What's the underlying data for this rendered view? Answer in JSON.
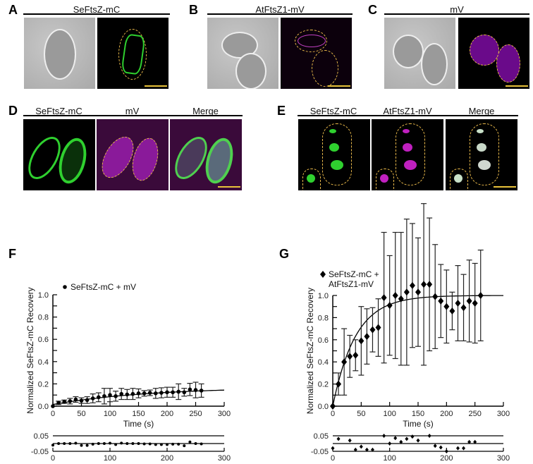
{
  "panels": {
    "A": {
      "label": "A",
      "title": "SeFtsZ-mC"
    },
    "B": {
      "label": "B",
      "title": "AtFtsZ1-mV"
    },
    "C": {
      "label": "C",
      "title": "mV"
    },
    "D": {
      "label": "D",
      "columns": [
        "SeFtsZ-mC",
        "mV",
        "Merge"
      ]
    },
    "E": {
      "label": "E",
      "columns": [
        "SeFtsZ-mC",
        "AtFtsZ1-mV",
        "Merge"
      ]
    },
    "F": {
      "label": "F"
    },
    "G": {
      "label": "G"
    }
  },
  "colors": {
    "green": "#2fd02f",
    "magenta": "#b020b0",
    "outline": "#e8b84a",
    "scalebar": "#e8c23a"
  },
  "chart_data": [
    {
      "panel": "F",
      "type": "scatter",
      "title": "",
      "legend": "SeFtsZ-mC + mV",
      "xlabel": "Time (s)",
      "ylabel": "Normalized SeFtsZ-mC Recovery",
      "xlim": [
        0,
        300
      ],
      "ylim": [
        0,
        1.0
      ],
      "xticks": [
        0,
        50,
        100,
        150,
        200,
        250,
        300
      ],
      "yticks": [
        "0.0",
        "0.2",
        "0.4",
        "0.6",
        "0.8",
        "1.0"
      ],
      "x": [
        0,
        10,
        20,
        30,
        40,
        50,
        60,
        70,
        80,
        90,
        100,
        110,
        120,
        130,
        140,
        150,
        160,
        170,
        180,
        190,
        200,
        210,
        220,
        230,
        240,
        250,
        260
      ],
      "y": [
        0.0,
        0.03,
        0.04,
        0.045,
        0.06,
        0.05,
        0.055,
        0.07,
        0.08,
        0.09,
        0.1,
        0.09,
        0.11,
        0.105,
        0.11,
        0.115,
        0.115,
        0.12,
        0.115,
        0.12,
        0.125,
        0.125,
        0.13,
        0.125,
        0.15,
        0.145,
        0.14
      ],
      "err": [
        0.0,
        0.015,
        0.015,
        0.025,
        0.025,
        0.025,
        0.03,
        0.04,
        0.04,
        0.07,
        0.06,
        0.045,
        0.05,
        0.045,
        0.05,
        0.04,
        0.025,
        0.025,
        0.045,
        0.045,
        0.045,
        0.045,
        0.07,
        0.035,
        0.055,
        0.07,
        0.06
      ],
      "fit": "exponential recovery to ~0.15",
      "residuals": {
        "ylim": [
          -0.05,
          0.05
        ],
        "yticks": [
          "0.05",
          "-0.05"
        ],
        "xticks": [
          0,
          100,
          200,
          300
        ],
        "x": [
          0,
          10,
          20,
          30,
          40,
          50,
          60,
          70,
          80,
          90,
          100,
          110,
          120,
          130,
          140,
          150,
          160,
          170,
          180,
          190,
          200,
          210,
          220,
          230,
          240,
          250,
          260
        ],
        "y": [
          -0.01,
          0.0,
          0.0,
          0.0,
          0.002,
          -0.012,
          -0.012,
          -0.004,
          0.0,
          0.0,
          0.002,
          -0.006,
          0.003,
          0.0,
          0.0,
          0.0,
          -0.002,
          -0.002,
          -0.006,
          -0.006,
          -0.006,
          -0.004,
          -0.004,
          -0.014,
          0.01,
          0.0,
          -0.002
        ]
      }
    },
    {
      "panel": "G",
      "type": "scatter",
      "title": "",
      "legend": "SeFtsZ-mC + AtFtsZ1-mV",
      "legend_lines": [
        "SeFtsZ-mC +",
        "AtFtsZ1-mV"
      ],
      "xlabel": "Time (s)",
      "ylabel": "Normalized SeFtsZ-mC Recovery",
      "xlim": [
        0,
        300
      ],
      "ylim": [
        0,
        1.0
      ],
      "xticks": [
        0,
        50,
        100,
        150,
        200,
        250,
        300
      ],
      "yticks": [
        "0.0",
        "0.2",
        "0.4",
        "0.6",
        "0.8",
        "1.0"
      ],
      "x": [
        0,
        10,
        20,
        30,
        40,
        50,
        60,
        70,
        80,
        90,
        100,
        110,
        120,
        130,
        140,
        150,
        160,
        170,
        180,
        190,
        200,
        210,
        220,
        230,
        240,
        250,
        260
      ],
      "y": [
        0.0,
        0.2,
        0.4,
        0.45,
        0.46,
        0.59,
        0.63,
        0.69,
        0.71,
        0.98,
        0.91,
        1.0,
        0.97,
        1.03,
        1.09,
        1.03,
        1.1,
        1.1,
        0.99,
        0.95,
        0.9,
        0.86,
        0.93,
        0.89,
        0.95,
        0.93,
        1.0
      ],
      "err": [
        0.0,
        0.1,
        0.3,
        0.19,
        0.14,
        0.31,
        0.25,
        0.2,
        0.26,
        0.59,
        0.45,
        0.57,
        0.6,
        0.66,
        0.56,
        0.49,
        0.73,
        0.6,
        0.47,
        0.33,
        0.33,
        0.17,
        0.34,
        0.3,
        0.37,
        0.36,
        0.41
      ],
      "fit": "exponential recovery to ~1.0",
      "residuals": {
        "ylim": [
          -0.05,
          0.05
        ],
        "yticks": [
          "0.05",
          "-0.05"
        ],
        "xticks": [
          0,
          100,
          200,
          300
        ],
        "x": [
          0,
          10,
          20,
          30,
          40,
          50,
          60,
          70,
          80,
          90,
          100,
          110,
          120,
          130,
          140,
          150,
          160,
          170,
          180,
          190,
          200,
          210,
          220,
          230,
          240,
          250,
          260
        ],
        "y": [
          -0.03,
          0.03,
          null,
          0.02,
          -0.04,
          -0.02,
          -0.04,
          -0.04,
          null,
          0.05,
          0.0,
          0.035,
          0.01,
          0.03,
          0.045,
          0.02,
          null,
          0.05,
          -0.015,
          -0.025,
          -0.05,
          null,
          -0.03,
          -0.03,
          0.01,
          0.01,
          null
        ]
      }
    }
  ]
}
